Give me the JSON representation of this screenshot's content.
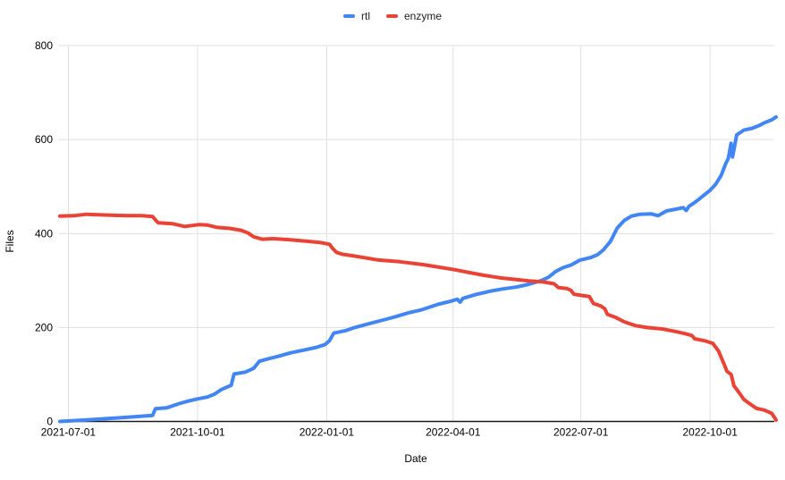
{
  "legend": {
    "items": [
      {
        "label": "rtl",
        "color": "#4285f4"
      },
      {
        "label": "enzyme",
        "color": "#ea4335"
      }
    ]
  },
  "colors": {
    "series_rtl": "#4285f4",
    "series_enzyme": "#ea4335",
    "gridline": "#e0e0e0",
    "axis_line": "#1a1a1a",
    "tick_text": "#000000"
  },
  "chart_data": {
    "type": "line",
    "title": "",
    "xlabel": "Date",
    "ylabel": "Files",
    "ylim": [
      0,
      800
    ],
    "yticks": [
      0,
      200,
      400,
      600,
      800
    ],
    "xticks": [
      "2021-07-01",
      "2021-10-01",
      "2022-01-01",
      "2022-04-01",
      "2022-07-01",
      "2022-10-01"
    ],
    "x_range": [
      "2021-06-25",
      "2022-11-17"
    ],
    "grid": true,
    "legend_position": "top",
    "series": [
      {
        "name": "rtl",
        "color": "#4285f4",
        "points": [
          [
            "2021-06-25",
            0
          ],
          [
            "2021-07-13",
            3
          ],
          [
            "2021-07-29",
            6
          ],
          [
            "2021-08-17",
            10
          ],
          [
            "2021-08-30",
            13
          ],
          [
            "2021-09-01",
            27
          ],
          [
            "2021-09-09",
            29
          ],
          [
            "2021-09-18",
            38
          ],
          [
            "2021-09-25",
            44
          ],
          [
            "2021-10-01",
            48
          ],
          [
            "2021-10-08",
            52
          ],
          [
            "2021-10-13",
            58
          ],
          [
            "2021-10-18",
            68
          ],
          [
            "2021-10-25",
            77
          ],
          [
            "2021-10-27",
            101
          ],
          [
            "2021-11-04",
            105
          ],
          [
            "2021-11-10",
            113
          ],
          [
            "2021-11-14",
            128
          ],
          [
            "2021-11-20",
            133
          ],
          [
            "2021-11-28",
            139
          ],
          [
            "2021-12-06",
            146
          ],
          [
            "2021-12-16",
            152
          ],
          [
            "2021-12-25",
            158
          ],
          [
            "2021-12-31",
            164
          ],
          [
            "2022-01-03",
            172
          ],
          [
            "2022-01-06",
            188
          ],
          [
            "2022-01-14",
            193
          ],
          [
            "2022-01-21",
            200
          ],
          [
            "2022-01-31",
            208
          ],
          [
            "2022-02-09",
            215
          ],
          [
            "2022-02-19",
            223
          ],
          [
            "2022-02-28",
            231
          ],
          [
            "2022-03-10",
            238
          ],
          [
            "2022-03-21",
            249
          ],
          [
            "2022-03-29",
            255
          ],
          [
            "2022-04-04",
            260
          ],
          [
            "2022-04-06",
            254
          ],
          [
            "2022-04-08",
            262
          ],
          [
            "2022-04-17",
            270
          ],
          [
            "2022-04-27",
            277
          ],
          [
            "2022-05-06",
            282
          ],
          [
            "2022-05-16",
            286
          ],
          [
            "2022-05-25",
            292
          ],
          [
            "2022-06-03",
            300
          ],
          [
            "2022-06-08",
            307
          ],
          [
            "2022-06-13",
            319
          ],
          [
            "2022-06-18",
            327
          ],
          [
            "2022-06-24",
            333
          ],
          [
            "2022-06-30",
            343
          ],
          [
            "2022-07-08",
            349
          ],
          [
            "2022-07-13",
            355
          ],
          [
            "2022-07-17",
            365
          ],
          [
            "2022-07-22",
            383
          ],
          [
            "2022-07-27",
            412
          ],
          [
            "2022-08-01",
            428
          ],
          [
            "2022-08-06",
            437
          ],
          [
            "2022-08-12",
            441
          ],
          [
            "2022-08-20",
            442
          ],
          [
            "2022-08-25",
            438
          ],
          [
            "2022-08-31",
            448
          ],
          [
            "2022-09-07",
            452
          ],
          [
            "2022-09-12",
            455
          ],
          [
            "2022-09-14",
            449
          ],
          [
            "2022-09-16",
            458
          ],
          [
            "2022-09-21",
            468
          ],
          [
            "2022-09-26",
            480
          ],
          [
            "2022-10-01",
            492
          ],
          [
            "2022-10-05",
            505
          ],
          [
            "2022-10-09",
            524
          ],
          [
            "2022-10-12",
            548
          ],
          [
            "2022-10-14",
            560
          ],
          [
            "2022-10-16",
            592
          ],
          [
            "2022-10-17",
            563
          ],
          [
            "2022-10-20",
            610
          ],
          [
            "2022-10-25",
            620
          ],
          [
            "2022-10-31",
            624
          ],
          [
            "2022-11-05",
            630
          ],
          [
            "2022-11-09",
            636
          ],
          [
            "2022-11-14",
            642
          ],
          [
            "2022-11-17",
            648
          ]
        ]
      },
      {
        "name": "enzyme",
        "color": "#ea4335",
        "points": [
          [
            "2021-06-25",
            437
          ],
          [
            "2021-07-05",
            438
          ],
          [
            "2021-07-14",
            441
          ],
          [
            "2021-07-22",
            440
          ],
          [
            "2021-08-01",
            439
          ],
          [
            "2021-08-12",
            438
          ],
          [
            "2021-08-22",
            438
          ],
          [
            "2021-08-30",
            436
          ],
          [
            "2021-09-01",
            429
          ],
          [
            "2021-09-03",
            423
          ],
          [
            "2021-09-13",
            421
          ],
          [
            "2021-09-22",
            415
          ],
          [
            "2021-09-27",
            417
          ],
          [
            "2021-10-02",
            419
          ],
          [
            "2021-10-08",
            418
          ],
          [
            "2021-10-15",
            413
          ],
          [
            "2021-10-24",
            411
          ],
          [
            "2021-11-01",
            407
          ],
          [
            "2021-11-06",
            401
          ],
          [
            "2021-11-10",
            393
          ],
          [
            "2021-11-16",
            388
          ],
          [
            "2021-11-24",
            389
          ],
          [
            "2021-12-05",
            387
          ],
          [
            "2021-12-17",
            384
          ],
          [
            "2021-12-27",
            381
          ],
          [
            "2022-01-03",
            377
          ],
          [
            "2022-01-05",
            369
          ],
          [
            "2022-01-08",
            360
          ],
          [
            "2022-01-12",
            356
          ],
          [
            "2022-01-21",
            352
          ],
          [
            "2022-02-06",
            344
          ],
          [
            "2022-02-22",
            340
          ],
          [
            "2022-03-10",
            334
          ],
          [
            "2022-03-23",
            328
          ],
          [
            "2022-04-02",
            323
          ],
          [
            "2022-04-14",
            316
          ],
          [
            "2022-04-23",
            311
          ],
          [
            "2022-05-04",
            306
          ],
          [
            "2022-05-16",
            302
          ],
          [
            "2022-05-25",
            299
          ],
          [
            "2022-06-04",
            297
          ],
          [
            "2022-06-12",
            293
          ],
          [
            "2022-06-15",
            285
          ],
          [
            "2022-06-21",
            283
          ],
          [
            "2022-06-24",
            279
          ],
          [
            "2022-06-26",
            271
          ],
          [
            "2022-07-02",
            268
          ],
          [
            "2022-07-07",
            266
          ],
          [
            "2022-07-10",
            251
          ],
          [
            "2022-07-15",
            246
          ],
          [
            "2022-07-18",
            240
          ],
          [
            "2022-07-20",
            228
          ],
          [
            "2022-07-26",
            221
          ],
          [
            "2022-08-01",
            212
          ],
          [
            "2022-08-09",
            204
          ],
          [
            "2022-08-17",
            200
          ],
          [
            "2022-08-28",
            197
          ],
          [
            "2022-09-07",
            191
          ],
          [
            "2022-09-13",
            187
          ],
          [
            "2022-09-18",
            183
          ],
          [
            "2022-09-20",
            176
          ],
          [
            "2022-09-28",
            171
          ],
          [
            "2022-10-03",
            166
          ],
          [
            "2022-10-07",
            150
          ],
          [
            "2022-10-11",
            122
          ],
          [
            "2022-10-13",
            107
          ],
          [
            "2022-10-16",
            100
          ],
          [
            "2022-10-18",
            76
          ],
          [
            "2022-10-22",
            60
          ],
          [
            "2022-10-25",
            47
          ],
          [
            "2022-10-29",
            38
          ],
          [
            "2022-11-03",
            28
          ],
          [
            "2022-11-09",
            24
          ],
          [
            "2022-11-14",
            17
          ],
          [
            "2022-11-16",
            8
          ],
          [
            "2022-11-17",
            3
          ]
        ]
      }
    ]
  }
}
